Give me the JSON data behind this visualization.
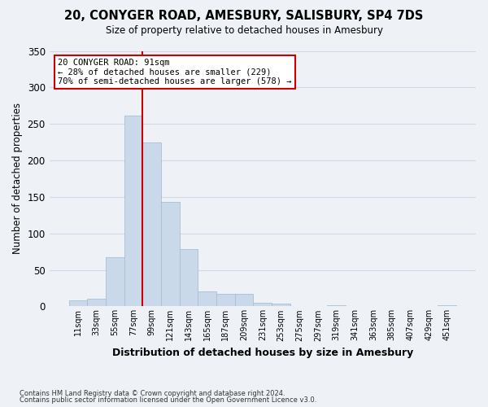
{
  "title1": "20, CONYGER ROAD, AMESBURY, SALISBURY, SP4 7DS",
  "title2": "Size of property relative to detached houses in Amesbury",
  "xlabel": "Distribution of detached houses by size in Amesbury",
  "ylabel": "Number of detached properties",
  "bar_labels": [
    "11sqm",
    "33sqm",
    "55sqm",
    "77sqm",
    "99sqm",
    "121sqm",
    "143sqm",
    "165sqm",
    "187sqm",
    "209sqm",
    "231sqm",
    "253sqm",
    "275sqm",
    "297sqm",
    "319sqm",
    "341sqm",
    "363sqm",
    "385sqm",
    "407sqm",
    "429sqm",
    "451sqm"
  ],
  "bar_values": [
    8,
    10,
    67,
    261,
    225,
    143,
    78,
    21,
    17,
    17,
    5,
    4,
    0,
    0,
    1,
    0,
    0,
    0,
    0,
    0,
    2
  ],
  "bar_color": "#c9d9ea",
  "bar_edgecolor": "#a8c0d4",
  "vline_x_index": 3,
  "vline_color": "#cc0000",
  "annotation_line1": "20 CONYGER ROAD: 91sqm",
  "annotation_line2": "← 28% of detached houses are smaller (229)",
  "annotation_line3": "70% of semi-detached houses are larger (578) →",
  "annotation_box_color": "#ffffff",
  "annotation_box_edgecolor": "#cc0000",
  "ylim": [
    0,
    350
  ],
  "yticks": [
    0,
    50,
    100,
    150,
    200,
    250,
    300,
    350
  ],
  "grid_color": "#d0d8e8",
  "footer1": "Contains HM Land Registry data © Crown copyright and database right 2024.",
  "footer2": "Contains public sector information licensed under the Open Government Licence v3.0.",
  "bg_color": "#eef2f7",
  "plot_bg_color": "#eef2f7"
}
